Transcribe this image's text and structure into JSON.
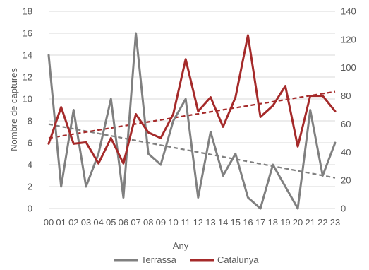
{
  "chart_data": {
    "type": "line",
    "categories": [
      "00",
      "01",
      "02",
      "03",
      "04",
      "05",
      "06",
      "07",
      "08",
      "09",
      "10",
      "11",
      "12",
      "13",
      "14",
      "15",
      "16",
      "17",
      "18",
      "19",
      "20",
      "21",
      "22",
      "23"
    ],
    "xlabel": "Any",
    "ylabel": "Nombre de captures",
    "ylim_left": [
      0,
      18
    ],
    "yticks_left": [
      "0",
      "2",
      "4",
      "6",
      "8",
      "10",
      "12",
      "14",
      "16",
      "18"
    ],
    "ylim_right": [
      0,
      140
    ],
    "yticks_right": [
      "0",
      "20",
      "40",
      "60",
      "80",
      "100",
      "120",
      "140"
    ],
    "grid": true,
    "legend_position": "bottom",
    "series": [
      {
        "name": "Terrassa",
        "axis": "left",
        "color": "#808080",
        "values": [
          14,
          2,
          9,
          2,
          5,
          10,
          1,
          16,
          5,
          4,
          8,
          10,
          1,
          7,
          3,
          5,
          1,
          0,
          4,
          2,
          0,
          9,
          3,
          6
        ],
        "trend": [
          7.7,
          2.8
        ]
      },
      {
        "name": "Catalunya",
        "axis": "right",
        "color": "#A52A2A",
        "values": [
          46,
          72,
          46,
          47,
          32,
          50,
          32,
          67,
          54,
          50,
          67,
          106,
          69,
          79,
          58,
          79,
          123,
          65,
          73,
          87,
          44,
          80,
          80,
          69
        ],
        "trend": [
          50,
          83
        ]
      }
    ]
  }
}
